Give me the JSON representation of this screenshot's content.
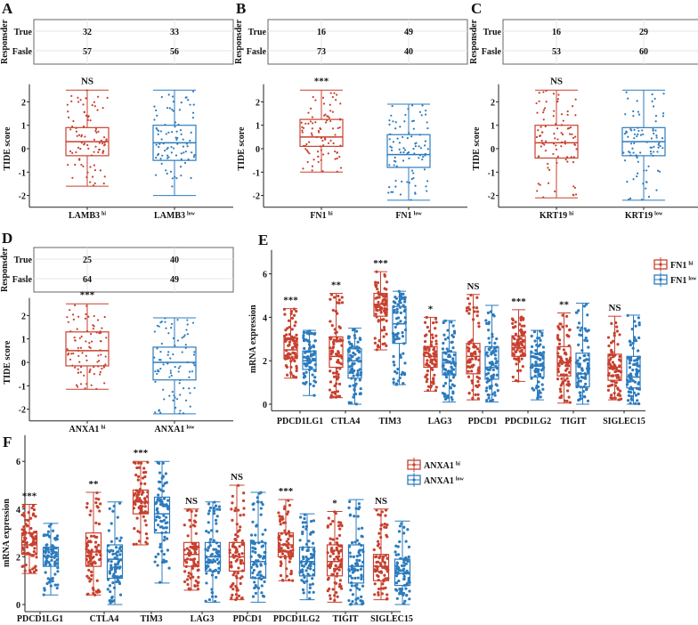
{
  "colors": {
    "hi": "#c7412f",
    "low": "#2c7bbd"
  },
  "chart_data": [
    {
      "panel": "A",
      "type": "box",
      "table": {
        "ylabel": "Responsder",
        "rows": [
          {
            "label": "True",
            "values": [
              "32",
              "33"
            ]
          },
          {
            "label": "Fasle",
            "values": [
              "57",
              "56"
            ]
          }
        ]
      },
      "ylabel": "TIDE score",
      "yticks": [
        "-2",
        "-1",
        "0",
        "1",
        "2"
      ],
      "ylim": [
        -2.5,
        2.7
      ],
      "significance": "NS",
      "groups": [
        {
          "name": "LAMB3",
          "sup": "hi",
          "color": "hi",
          "min": -1.6,
          "q1": -0.3,
          "median": 0.3,
          "q3": 0.9,
          "max": 2.5
        },
        {
          "name": "LAMB3",
          "sup": "low",
          "color": "low",
          "min": -2.0,
          "q1": -0.5,
          "median": 0.25,
          "q3": 1.0,
          "max": 2.5
        }
      ]
    },
    {
      "panel": "B",
      "type": "box",
      "table": {
        "ylabel": "Responsder",
        "rows": [
          {
            "label": "True",
            "values": [
              "16",
              "49"
            ]
          },
          {
            "label": "Fasle",
            "values": [
              "73",
              "40"
            ]
          }
        ]
      },
      "ylabel": "TIDE score",
      "yticks": [
        "-2",
        "-1",
        "0",
        "1",
        "2"
      ],
      "ylim": [
        -2.5,
        2.7
      ],
      "significance": "***",
      "groups": [
        {
          "name": "FN1",
          "sup": "hi",
          "color": "hi",
          "min": -1.0,
          "q1": 0.1,
          "median": 0.5,
          "q3": 1.25,
          "max": 2.5
        },
        {
          "name": "FN1",
          "sup": "low",
          "color": "low",
          "min": -2.2,
          "q1": -0.8,
          "median": -0.25,
          "q3": 0.6,
          "max": 1.9
        }
      ]
    },
    {
      "panel": "C",
      "type": "box",
      "table": {
        "ylabel": "Responsder",
        "rows": [
          {
            "label": "True",
            "values": [
              "16",
              "29"
            ]
          },
          {
            "label": "Fasle",
            "values": [
              "53",
              "60"
            ]
          }
        ]
      },
      "ylabel": "TIDE score",
      "yticks": [
        "-2",
        "-1",
        "0",
        "1",
        "2"
      ],
      "ylim": [
        -2.5,
        2.7
      ],
      "significance": "NS",
      "groups": [
        {
          "name": "KRT19",
          "sup": "hi",
          "color": "hi",
          "min": -2.1,
          "q1": -0.4,
          "median": 0.25,
          "q3": 1.0,
          "max": 2.5
        },
        {
          "name": "KRT19",
          "sup": "low",
          "color": "low",
          "min": -2.2,
          "q1": -0.3,
          "median": 0.3,
          "q3": 0.9,
          "max": 2.5
        }
      ]
    },
    {
      "panel": "D",
      "type": "box",
      "table": {
        "ylabel": "Responsder",
        "rows": [
          {
            "label": "True",
            "values": [
              "25",
              "40"
            ]
          },
          {
            "label": "Fasle",
            "values": [
              "64",
              "49"
            ]
          }
        ]
      },
      "ylabel": "TIDE score",
      "yticks": [
        "-2",
        "-1",
        "0",
        "1",
        "2"
      ],
      "ylim": [
        -2.5,
        2.7
      ],
      "significance": "***",
      "groups": [
        {
          "name": "ANXA1",
          "sup": "hi",
          "color": "hi",
          "min": -1.15,
          "q1": -0.15,
          "median": 0.5,
          "q3": 1.3,
          "max": 2.5
        },
        {
          "name": "ANXA1",
          "sup": "low",
          "color": "low",
          "min": -2.2,
          "q1": -0.75,
          "median": 0.0,
          "q3": 0.65,
          "max": 1.9
        }
      ]
    },
    {
      "panel": "E",
      "type": "box",
      "ylabel": "mRNA expression",
      "yticks": [
        "0",
        "2",
        "4",
        "6"
      ],
      "ylim": [
        -0.2,
        7
      ],
      "legend": [
        {
          "name": "FN1",
          "sup": "hi",
          "color": "hi"
        },
        {
          "name": "FN1",
          "sup": "low",
          "color": "low"
        }
      ],
      "legend_position": "right",
      "categories": [
        {
          "label": "PDCD1LG1",
          "sig": "***",
          "hi": [
            1.2,
            2.1,
            2.5,
            3.05,
            4.4
          ],
          "low": [
            0.4,
            1.6,
            2.0,
            2.45,
            3.4
          ]
        },
        {
          "label": "CTLA4",
          "sig": "**",
          "hi": [
            0.3,
            1.7,
            2.2,
            3.1,
            5.1
          ],
          "low": [
            0.0,
            1.2,
            2.0,
            2.55,
            3.5
          ]
        },
        {
          "label": "TIM3",
          "sig": "***",
          "hi": [
            2.5,
            4.05,
            4.6,
            5.1,
            6.1
          ],
          "low": [
            0.9,
            2.8,
            3.7,
            4.5,
            5.2
          ]
        },
        {
          "label": "LAG3",
          "sig": "*",
          "hi": [
            0.6,
            1.7,
            2.2,
            2.65,
            4.0
          ],
          "low": [
            0.1,
            1.35,
            1.9,
            2.4,
            3.85
          ]
        },
        {
          "label": "PDCD1",
          "sig": "NS",
          "hi": [
            0.2,
            1.4,
            2.2,
            2.8,
            5.05
          ],
          "low": [
            0.1,
            1.15,
            1.7,
            2.65,
            4.55
          ]
        },
        {
          "label": "PDCD1LG2",
          "sig": "***",
          "hi": [
            1.05,
            2.2,
            2.6,
            3.15,
            4.35
          ],
          "low": [
            0.2,
            1.25,
            1.75,
            2.35,
            3.4
          ]
        },
        {
          "label": "TIGIT",
          "sig": "**",
          "hi": [
            0.05,
            1.3,
            1.9,
            2.65,
            4.2
          ],
          "low": [
            0.0,
            0.8,
            1.4,
            2.35,
            4.65
          ]
        },
        {
          "label": "SIGLEC15",
          "sig": "NS",
          "hi": [
            0.2,
            1.1,
            1.7,
            2.3,
            4.05
          ],
          "low": [
            0.0,
            0.75,
            1.25,
            2.2,
            4.1
          ]
        }
      ]
    },
    {
      "panel": "F",
      "type": "box",
      "ylabel": "mRNA expression",
      "yticks": [
        "0",
        "2",
        "4",
        "6"
      ],
      "ylim": [
        -0.2,
        7
      ],
      "legend": [
        {
          "name": "ANXA1",
          "sup": "hi",
          "color": "hi"
        },
        {
          "name": "ANXA1",
          "sup": "low",
          "color": "low"
        }
      ],
      "legend_position": "right",
      "categories": [
        {
          "label": "PDCD1LG1",
          "sig": "***",
          "hi": [
            1.3,
            2.1,
            2.5,
            3.0,
            4.2
          ],
          "low": [
            0.4,
            1.6,
            2.0,
            2.4,
            3.4
          ]
        },
        {
          "label": "CTLA4",
          "sig": "**",
          "hi": [
            0.4,
            1.6,
            2.2,
            3.0,
            4.7
          ],
          "low": [
            0.0,
            1.1,
            1.9,
            2.5,
            4.3
          ]
        },
        {
          "label": "TIM3",
          "sig": "***",
          "hi": [
            2.5,
            3.8,
            4.3,
            4.8,
            6.0
          ],
          "low": [
            0.9,
            3.0,
            3.8,
            4.5,
            6.0
          ]
        },
        {
          "label": "LAG3",
          "sig": "NS",
          "hi": [
            0.6,
            1.6,
            2.1,
            2.6,
            4.0
          ],
          "low": [
            0.1,
            1.4,
            2.0,
            2.6,
            4.3
          ]
        },
        {
          "label": "PDCD1",
          "sig": "NS",
          "hi": [
            0.2,
            1.4,
            2.0,
            2.6,
            5.0
          ],
          "low": [
            0.1,
            1.1,
            1.8,
            2.6,
            4.7
          ]
        },
        {
          "label": "PDCD1LG2",
          "sig": "***",
          "hi": [
            1.0,
            2.0,
            2.5,
            3.0,
            4.4
          ],
          "low": [
            0.2,
            1.2,
            1.8,
            2.4,
            3.8
          ]
        },
        {
          "label": "TIGIT",
          "sig": "*",
          "hi": [
            0.1,
            1.2,
            1.8,
            2.5,
            3.9
          ],
          "low": [
            0.0,
            0.9,
            1.6,
            2.5,
            4.4
          ]
        },
        {
          "label": "SIGLEC15",
          "sig": "NS",
          "hi": [
            0.2,
            1.0,
            1.6,
            2.1,
            4.0
          ],
          "low": [
            0.0,
            0.8,
            1.3,
            1.9,
            3.5
          ]
        }
      ]
    }
  ]
}
